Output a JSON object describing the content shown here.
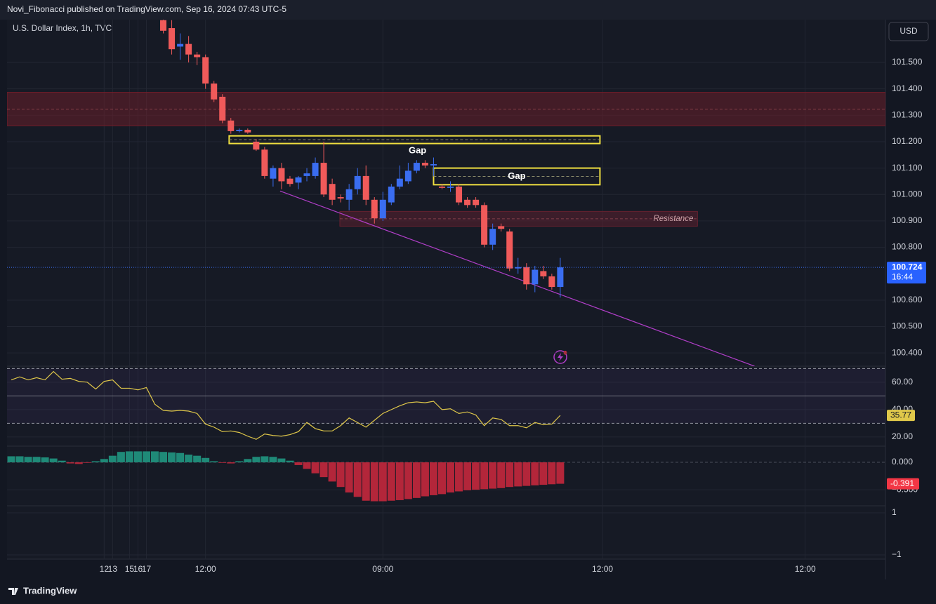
{
  "header": {
    "publisher": "Novi_Fibonacci published on TradingView.com, Sep 16, 2024 07:43 UTC-5",
    "currency": "USD",
    "footer": "TradingView"
  },
  "chart_data": [
    {
      "type": "candlestick",
      "title": "U.S. Dollar Index, 1h, TVC",
      "x": [
        1,
        2,
        3,
        4,
        5,
        6,
        7,
        8,
        9,
        10,
        11,
        12,
        13,
        14,
        15,
        16,
        17,
        18,
        19,
        20,
        21,
        22,
        23,
        24,
        25,
        26,
        27,
        28,
        29,
        30,
        31,
        32,
        33,
        34,
        35,
        36,
        37,
        38,
        39,
        40,
        41,
        42,
        43,
        44,
        45,
        46,
        47,
        48,
        49,
        50,
        51,
        52,
        53,
        54,
        55,
        56,
        57,
        58,
        59,
        60,
        61,
        62,
        63,
        64,
        65,
        66
      ],
      "open": [
        null,
        null,
        null,
        null,
        null,
        null,
        null,
        null,
        null,
        null,
        null,
        null,
        null,
        null,
        null,
        null,
        null,
        null,
        101.66,
        101.63,
        101.56,
        101.57,
        101.53,
        101.52,
        101.42,
        101.37,
        101.28,
        101.24,
        101.245,
        101.2,
        101.17,
        101.06,
        101.1,
        101.06,
        101.045,
        101.07,
        101.07,
        101.12,
        101.04,
        100.99,
        100.98,
        101.02,
        101.07,
        100.98,
        100.91,
        100.97,
        101.03,
        101.05,
        101.09,
        101.12,
        101.11,
        101.03,
        101.025,
        101.03,
        100.98,
        100.98,
        100.96,
        100.81,
        100.88,
        100.86,
        100.72,
        100.725,
        100.66,
        100.71,
        100.69,
        100.65
      ],
      "high": [
        null,
        null,
        null,
        null,
        null,
        null,
        null,
        null,
        null,
        null,
        null,
        null,
        null,
        null,
        null,
        null,
        null,
        null,
        101.67,
        101.66,
        101.61,
        101.6,
        101.54,
        101.53,
        101.43,
        101.38,
        101.29,
        101.25,
        101.25,
        101.21,
        101.18,
        101.11,
        101.12,
        101.07,
        101.07,
        101.1,
        101.14,
        101.2,
        101.06,
        101.0,
        101.04,
        101.1,
        101.11,
        100.99,
        101.01,
        101.04,
        101.11,
        101.12,
        101.13,
        101.13,
        101.14,
        101.04,
        101.05,
        101.04,
        100.99,
        100.99,
        100.97,
        100.89,
        100.89,
        100.87,
        100.76,
        100.74,
        100.73,
        100.73,
        100.7,
        100.76
      ],
      "low": [
        null,
        null,
        null,
        null,
        null,
        null,
        null,
        null,
        null,
        null,
        null,
        null,
        null,
        null,
        null,
        null,
        null,
        null,
        101.61,
        101.53,
        101.51,
        101.5,
        101.49,
        101.4,
        101.35,
        101.27,
        101.23,
        101.235,
        101.23,
        101.165,
        101.06,
        101.03,
        101.02,
        101.03,
        101.02,
        101.05,
        101.06,
        100.99,
        100.96,
        100.97,
        100.94,
        101.0,
        100.96,
        100.89,
        100.9,
        100.96,
        101.02,
        101.04,
        101.08,
        101.1,
        101.07,
        101.02,
        101.01,
        100.96,
        100.95,
        100.95,
        100.8,
        100.79,
        100.86,
        100.71,
        100.7,
        100.64,
        100.63,
        100.68,
        100.64,
        100.61
      ],
      "close": [
        null,
        null,
        null,
        null,
        null,
        null,
        null,
        null,
        null,
        null,
        null,
        null,
        null,
        null,
        null,
        null,
        null,
        null,
        101.62,
        101.55,
        101.57,
        101.53,
        101.52,
        101.42,
        101.36,
        101.28,
        101.24,
        101.245,
        101.235,
        101.17,
        101.07,
        101.1,
        101.05,
        101.04,
        101.065,
        101.08,
        101.12,
        101.0,
        100.98,
        100.985,
        101.02,
        101.07,
        100.98,
        100.91,
        100.98,
        101.03,
        101.06,
        101.09,
        101.12,
        101.11,
        101.115,
        101.025,
        101.03,
        100.97,
        100.96,
        100.96,
        100.81,
        100.87,
        100.87,
        100.72,
        100.725,
        100.66,
        100.715,
        100.69,
        100.65,
        100.724
      ],
      "colors": {
        "up": "#3a6df0",
        "down": "#f05a5a"
      },
      "countdown": "16:44",
      "xlim": [
        0.5,
        104.5
      ],
      "xticks": [
        12,
        {
          "value": 24,
          "label": "12:00"
        },
        13,
        {
          "value": 45,
          "label": "09:00"
        },
        15,
        16,
        {
          "value": 71,
          "label": "12:00"
        },
        17,
        {
          "value": 95,
          "label": "12:00"
        }
      ],
      "ylim": [
        100.35,
        101.662
      ],
      "yticks": [
        {
          "value": 101.5,
          "label": "101.500"
        },
        {
          "value": 101.4,
          "label": "101.400"
        },
        {
          "value": 101.3,
          "label": "101.300"
        },
        {
          "value": 101.2,
          "label": "101.200"
        },
        {
          "value": 101.1,
          "label": "101.100"
        },
        {
          "value": 101.0,
          "label": "101.000"
        },
        {
          "value": 100.9,
          "label": "100.900"
        },
        {
          "value": 100.8,
          "label": "100.800"
        },
        {
          "value": 100.6,
          "label": "100.600"
        },
        {
          "value": 100.5,
          "label": "100.500"
        },
        {
          "value": 100.4,
          "label": "100.400"
        }
      ],
      "grid": true,
      "zones": [
        {
          "y0": 101.26,
          "y1": 101.387,
          "color": "#7a1e2a"
        },
        {
          "x0": 39.9,
          "x1": 82.25,
          "y0": 100.88,
          "y1": 100.936,
          "color": "#6b2130",
          "label": "Resistance"
        }
      ],
      "boxes": [
        {
          "x0": 26.8,
          "x1": 70.7,
          "y0": 101.193,
          "y1": 101.222,
          "color": "#f0e040"
        },
        {
          "x0": 51,
          "x1": 70.7,
          "y0": 101.037,
          "y1": 101.1,
          "color": "#f0e040",
          "label": "Gap"
        }
      ],
      "labels": [
        {
          "text": "Gap",
          "x": 49.1,
          "y": 101.165
        }
      ],
      "trendlines": [
        {
          "x": [
            32.83,
            89
          ],
          "y": [
            101.013,
            100.35
          ],
          "color": "#b03ec8"
        }
      ]
    },
    {
      "type": "line",
      "series": [
        {
          "color": "#e0c84a",
          "values": [
            61.7,
            63.9,
            61.7,
            63.3,
            61.7,
            67.8,
            62.2,
            62.8,
            60.6,
            60,
            55,
            60.6,
            61.7,
            55.6,
            55.6,
            54.4,
            56.1,
            43.9,
            39.4,
            38.9,
            39.4,
            38.9,
            37.2,
            29.4,
            27.2,
            23.9,
            24.4,
            23.3,
            20.6,
            18.3,
            22.2,
            21.1,
            20.6,
            21.7,
            23.9,
            30.6,
            26.1,
            24.4,
            24.4,
            28.3,
            33.9,
            30.6,
            27.2,
            32.2,
            37.2,
            40,
            42.8,
            45,
            45.6,
            45,
            46.1,
            40,
            40.6,
            37.2,
            38.3,
            36.1,
            28.3,
            33.9,
            32.8,
            28.3,
            28.3,
            26.7,
            30.6,
            28.9,
            29.4,
            35.77
          ]
        }
      ],
      "ylim": [
        13.3,
        71.7
      ],
      "yticks": [
        {
          "value": 60,
          "label": "60.00"
        },
        {
          "value": 40,
          "label": "40.00"
        },
        {
          "value": 20,
          "label": "20.00"
        }
      ],
      "bands": [
        30,
        50,
        70
      ]
    },
    {
      "type": "bar",
      "values": [
        0.11,
        0.11,
        0.1,
        0.1,
        0.09,
        0.07,
        0.03,
        -0.02,
        -0.03,
        -0.01,
        0.02,
        0.06,
        0.12,
        0.19,
        0.2,
        0.2,
        0.2,
        0.2,
        0.19,
        0.18,
        0.17,
        0.14,
        0.12,
        0.08,
        0.02,
        -0.01,
        -0.02,
        0.02,
        0.06,
        0.1,
        0.11,
        0.1,
        0.07,
        0.03,
        -0.05,
        -0.12,
        -0.2,
        -0.27,
        -0.35,
        -0.45,
        -0.55,
        -0.63,
        -0.7,
        -0.71,
        -0.71,
        -0.7,
        -0.69,
        -0.67,
        -0.65,
        -0.62,
        -0.6,
        -0.58,
        -0.55,
        -0.53,
        -0.51,
        -0.5,
        -0.49,
        -0.48,
        -0.47,
        -0.45,
        -0.44,
        -0.43,
        -0.42,
        -0.41,
        -0.4,
        -0.391
      ],
      "colors": {
        "up": "#1f8a78",
        "down": "#b3263a"
      },
      "ylim": [
        -0.78,
        0.282
      ],
      "yticks": [
        {
          "value": 0,
          "label": "0.000"
        },
        {
          "value": -0.5,
          "label": "−0.500"
        }
      ]
    },
    {
      "type": "line",
      "series": [],
      "ylim": [
        -1.2,
        1.3
      ],
      "yticks": [
        1,
        {
          "value": -1,
          "label": "−1"
        }
      ]
    }
  ]
}
